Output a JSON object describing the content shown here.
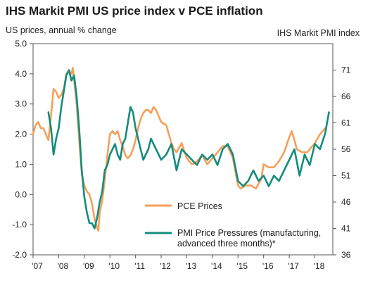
{
  "chart_data": {
    "type": "line",
    "title": "IHS Markit PMI US price index v PCE inflation",
    "ylabel": "US prices, annual % change",
    "y2label": "IHS Markit PMI index",
    "ylim": [
      -2.0,
      5.0
    ],
    "y2lim": [
      36,
      76
    ],
    "yticks": [
      "5.0",
      "4.0",
      "3.0",
      "2.0",
      "1.0",
      "0.0",
      "-1.0",
      "-2.0"
    ],
    "y2ticks": [
      "71",
      "66",
      "61",
      "56",
      "51",
      "46",
      "41",
      "36"
    ],
    "xticks": [
      "'07",
      "'08",
      "'09",
      "'10",
      "'11",
      "'12",
      "'13",
      "'14",
      "'15",
      "'16",
      "'17",
      "'18"
    ],
    "grid": false,
    "legend_position": "bottom-center",
    "series": [
      {
        "name": "PCE Prices",
        "axis": "left",
        "color": "#f5a05a",
        "x": [
          2007.0,
          2007.1,
          2007.2,
          2007.3,
          2007.4,
          2007.5,
          2007.6,
          2007.7,
          2007.8,
          2007.9,
          2008.0,
          2008.1,
          2008.2,
          2008.3,
          2008.4,
          2008.5,
          2008.55,
          2008.6,
          2008.7,
          2008.8,
          2008.9,
          2009.0,
          2009.1,
          2009.2,
          2009.3,
          2009.4,
          2009.5,
          2009.55,
          2009.6,
          2009.7,
          2009.8,
          2009.9,
          2010.0,
          2010.1,
          2010.2,
          2010.3,
          2010.4,
          2010.5,
          2010.6,
          2010.7,
          2010.8,
          2010.9,
          2011.0,
          2011.1,
          2011.2,
          2011.3,
          2011.4,
          2011.5,
          2011.6,
          2011.7,
          2011.8,
          2011.9,
          2012.0,
          2012.2,
          2012.4,
          2012.5,
          2012.6,
          2012.8,
          2013.0,
          2013.2,
          2013.4,
          2013.6,
          2013.8,
          2014.0,
          2014.2,
          2014.4,
          2014.6,
          2014.8,
          2015.0,
          2015.1,
          2015.3,
          2015.5,
          2015.7,
          2015.9,
          2016.0,
          2016.2,
          2016.4,
          2016.6,
          2016.8,
          2017.0,
          2017.1,
          2017.2,
          2017.3,
          2017.5,
          2017.7,
          2017.9,
          2018.0,
          2018.2,
          2018.4
        ],
        "values": [
          2.0,
          2.3,
          2.4,
          2.2,
          2.2,
          2.0,
          1.8,
          2.6,
          3.5,
          3.4,
          3.2,
          3.3,
          3.5,
          4.0,
          4.1,
          4.0,
          4.2,
          3.8,
          3.0,
          1.8,
          0.7,
          0.3,
          0.1,
          0.0,
          -0.3,
          -0.8,
          -1.1,
          -1.2,
          -0.6,
          -0.2,
          0.5,
          1.3,
          2.0,
          2.1,
          2.0,
          2.1,
          1.8,
          1.6,
          1.3,
          1.2,
          1.3,
          1.5,
          1.8,
          2.2,
          2.5,
          2.7,
          2.8,
          2.8,
          2.7,
          2.9,
          2.8,
          2.6,
          2.4,
          2.3,
          1.7,
          1.5,
          1.4,
          1.7,
          1.2,
          1.0,
          1.1,
          1.3,
          1.0,
          1.2,
          1.4,
          1.6,
          1.6,
          1.2,
          0.3,
          0.2,
          0.3,
          0.3,
          0.2,
          0.5,
          1.0,
          0.9,
          0.9,
          1.1,
          1.4,
          1.9,
          2.1,
          1.8,
          1.5,
          1.4,
          1.4,
          1.6,
          1.7,
          2.0,
          2.2
        ]
      },
      {
        "name": "PMI Price Pressures (manufacturing, advanced three months)*",
        "axis": "right",
        "color": "#148c7c",
        "x": [
          2007.6,
          2007.7,
          2007.8,
          2007.9,
          2008.0,
          2008.1,
          2008.2,
          2008.3,
          2008.4,
          2008.5,
          2008.6,
          2008.7,
          2008.8,
          2008.9,
          2009.0,
          2009.1,
          2009.2,
          2009.3,
          2009.4,
          2009.5,
          2009.6,
          2009.7,
          2009.8,
          2009.9,
          2010.0,
          2010.1,
          2010.2,
          2010.3,
          2010.4,
          2010.5,
          2010.6,
          2010.7,
          2010.8,
          2010.9,
          2011.0,
          2011.1,
          2011.2,
          2011.3,
          2011.4,
          2011.5,
          2011.6,
          2011.8,
          2012.0,
          2012.2,
          2012.4,
          2012.6,
          2012.8,
          2013.0,
          2013.2,
          2013.4,
          2013.6,
          2013.8,
          2014.0,
          2014.2,
          2014.4,
          2014.6,
          2014.8,
          2015.0,
          2015.2,
          2015.4,
          2015.6,
          2015.8,
          2016.0,
          2016.2,
          2016.4,
          2016.6,
          2016.8,
          2017.0,
          2017.2,
          2017.4,
          2017.6,
          2017.8,
          2018.0,
          2018.2,
          2018.4,
          2018.55
        ],
        "values": [
          63,
          60,
          55,
          58,
          60,
          64,
          67,
          70,
          71,
          69,
          70,
          66,
          60,
          52,
          47,
          44,
          42,
          42,
          41,
          43,
          46,
          48,
          52,
          53,
          55,
          56,
          57,
          55,
          54,
          57,
          58,
          61,
          64,
          63,
          60,
          58,
          56,
          54,
          55,
          56,
          58,
          56,
          54,
          55,
          57,
          52,
          56,
          55,
          54,
          53,
          55,
          54,
          55,
          53,
          56,
          57,
          55,
          50,
          49,
          50,
          52,
          50,
          51,
          49,
          51,
          50,
          52,
          54,
          56,
          51,
          55,
          53,
          57,
          56,
          59,
          63
        ]
      }
    ]
  },
  "legend": {
    "pce_label": "PCE Prices",
    "pmi_label_line1": "PMI Price Pressures (manufacturing,",
    "pmi_label_line2": "advanced three months)*"
  }
}
